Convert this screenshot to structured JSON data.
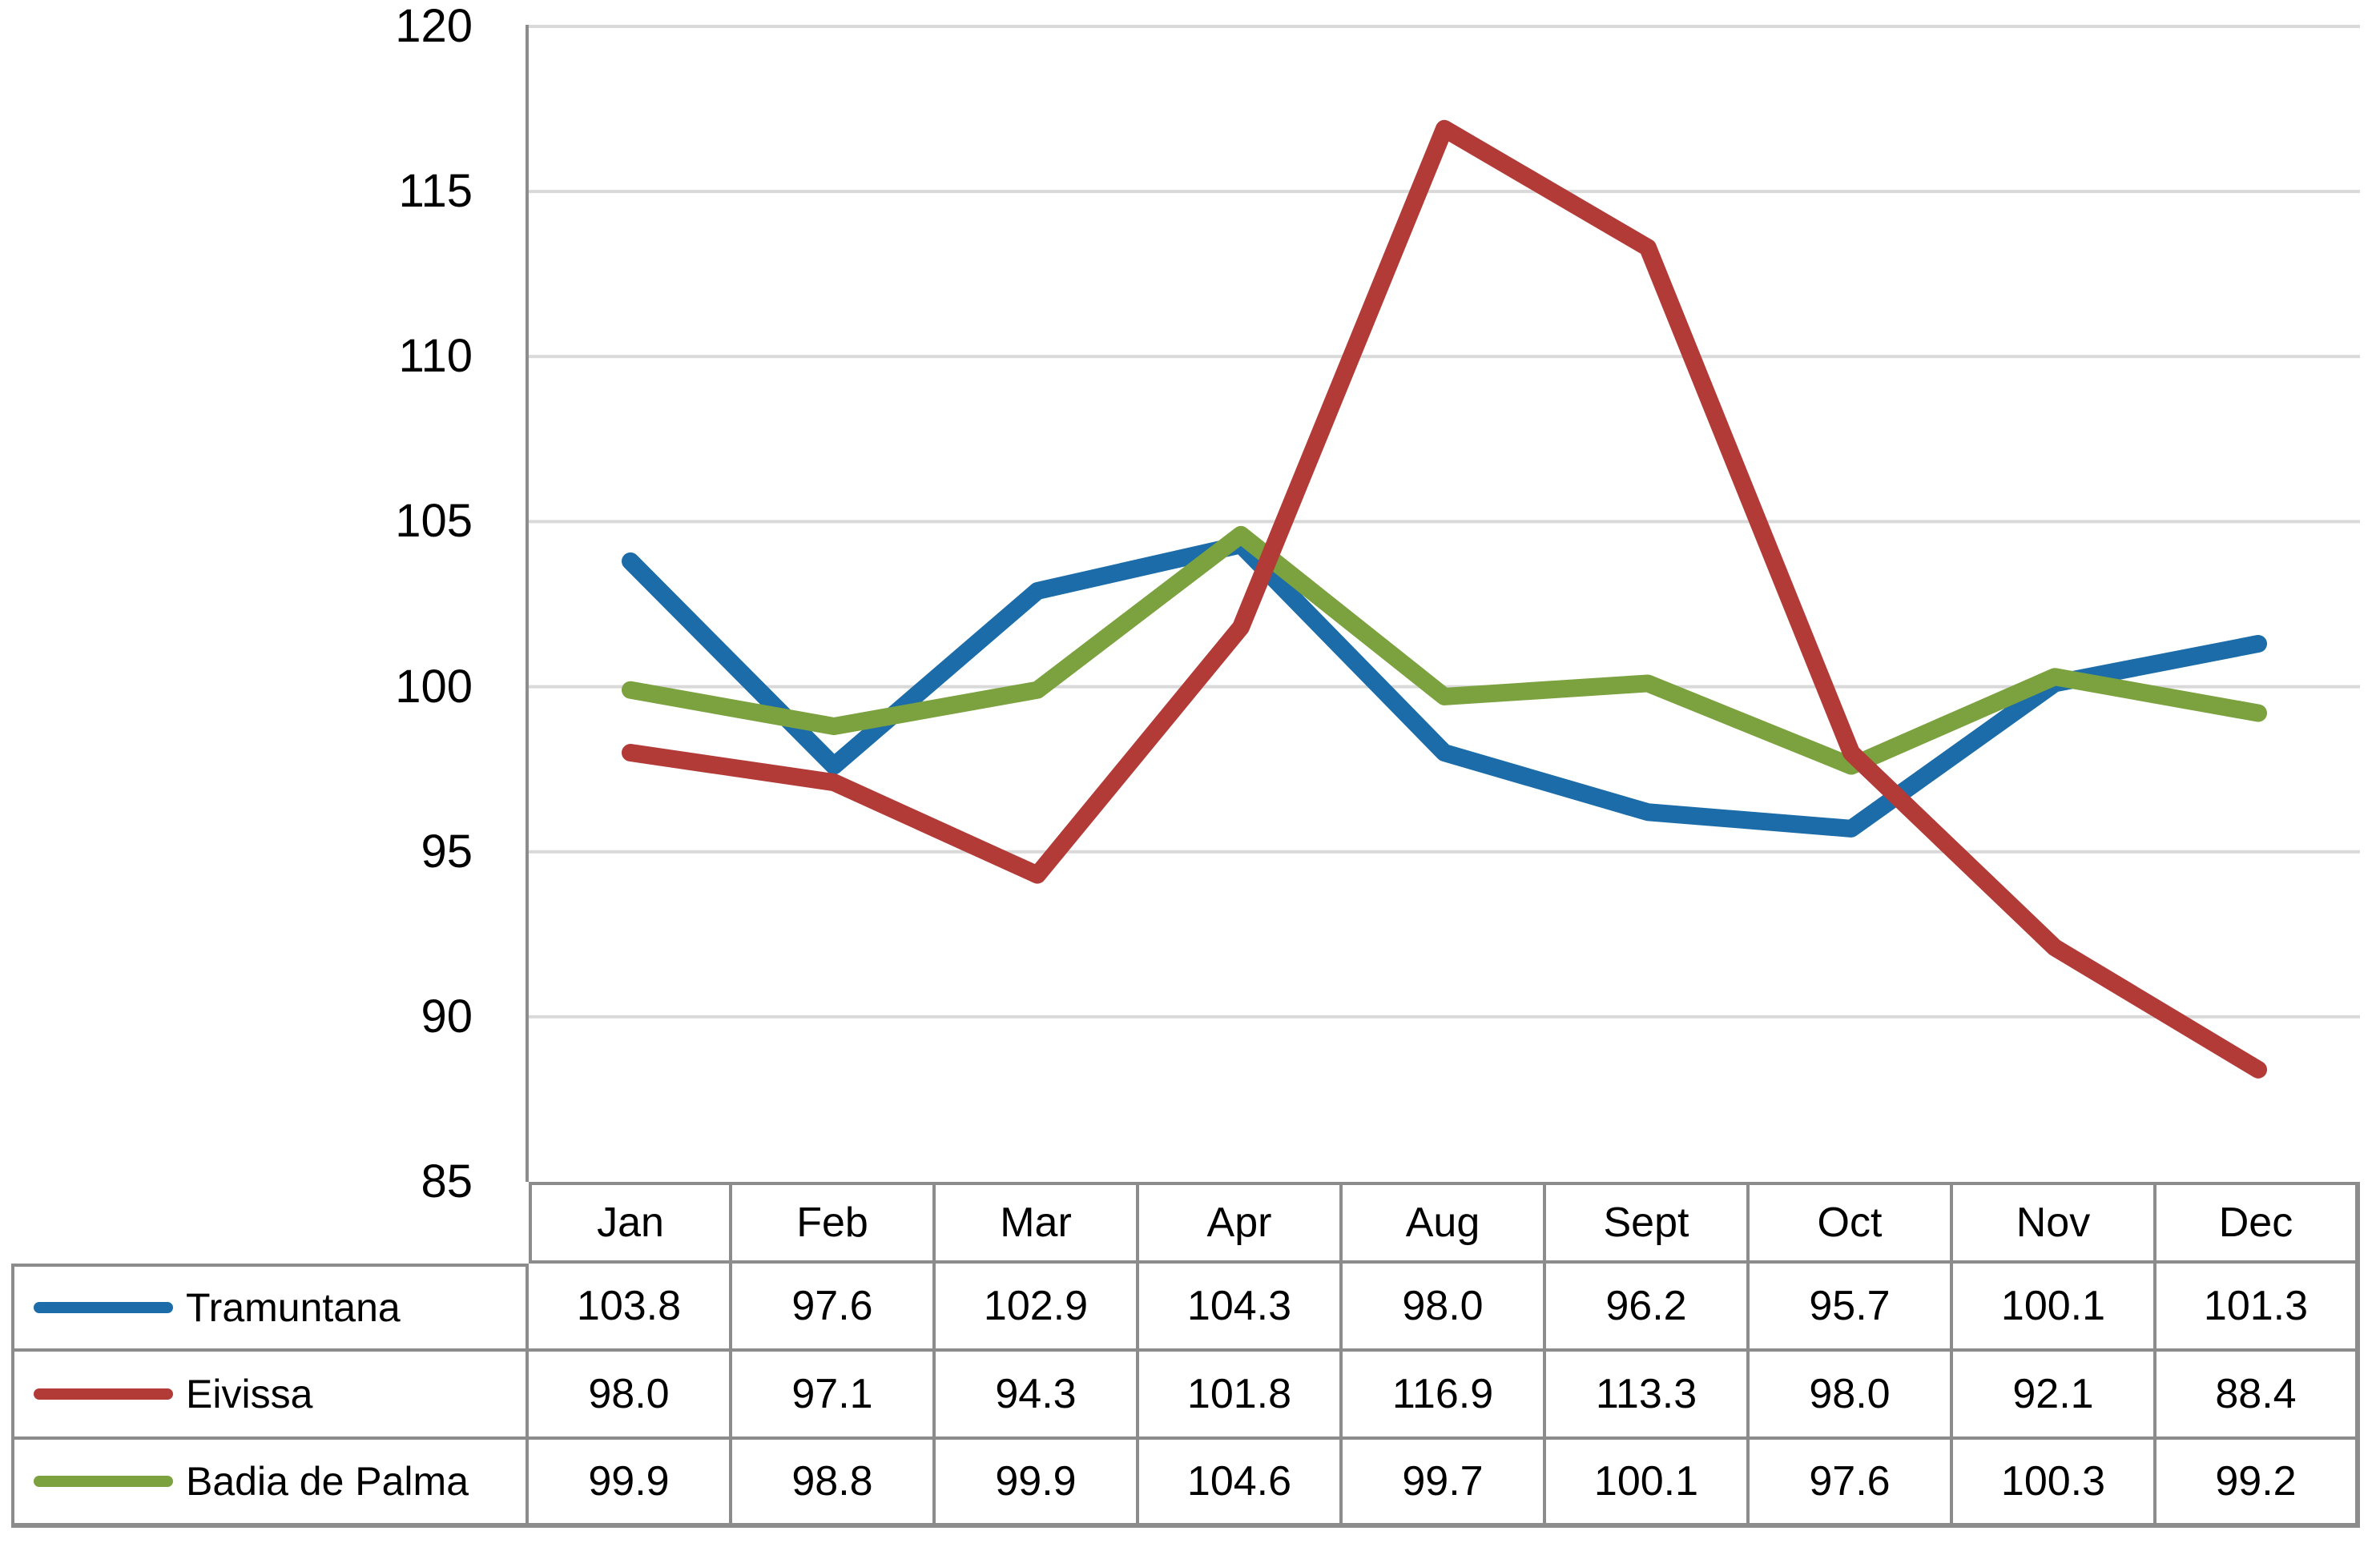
{
  "chart_data": {
    "type": "line",
    "title": "",
    "xlabel": "",
    "ylabel": "",
    "categories": [
      "Jan",
      "Feb",
      "Mar",
      "Apr",
      "Aug",
      "Sept",
      "Oct",
      "Nov",
      "Dec"
    ],
    "series": [
      {
        "name": "Tramuntana",
        "color": "#1B6CA8",
        "values": [
          103.8,
          97.6,
          102.9,
          104.3,
          98.0,
          96.2,
          95.7,
          100.1,
          101.3
        ]
      },
      {
        "name": "Eivissa",
        "color": "#B23B38",
        "values": [
          98.0,
          97.1,
          94.3,
          101.8,
          116.9,
          113.3,
          98.0,
          92.1,
          88.4
        ]
      },
      {
        "name": "Badia de Palma",
        "color": "#7BA23E",
        "values": [
          99.9,
          98.8,
          99.9,
          104.6,
          99.7,
          100.1,
          97.6,
          100.3,
          99.2
        ]
      }
    ],
    "ylim": [
      85,
      120
    ],
    "yticks": [
      120,
      115,
      110,
      105,
      100,
      95,
      90,
      85
    ],
    "grid": true,
    "legend_position": "table-left"
  },
  "styles": {
    "gridline_color": "#D9D9D9",
    "axis_color": "#8C8C8C",
    "table_border_color": "#8C8C8C",
    "text_color": "#000000",
    "background": "#FFFFFF"
  }
}
